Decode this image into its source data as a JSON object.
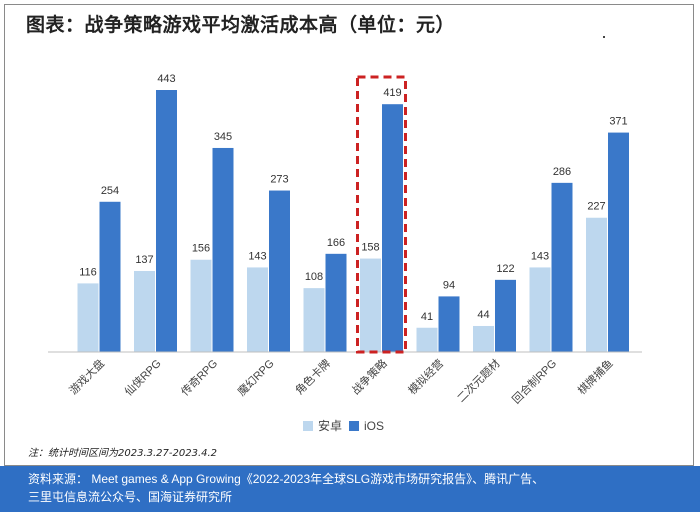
{
  "title": "图表：战争策略游戏平均激活成本高（单位：元）",
  "note": "注：统计时间区间为2023.3.27-2023.4.2",
  "source": {
    "line1": "资料来源：  Meet games & App Growing《2022-2023年全球SLG游戏市场研究报告》、腾讯广告、",
    "line2": "三里屯信息流公众号、国海证券研究所"
  },
  "colors": {
    "android": "#bdd7ee",
    "ios": "#3a78c9",
    "highlight": "#cc2222",
    "source_bg": "#2f6fc4"
  },
  "chart_data": {
    "type": "bar",
    "title": "图表：战争策略游戏平均激活成本高（单位：元）",
    "categories": [
      "游戏大盘",
      "仙侠RPG",
      "传奇RPG",
      "魔幻RPG",
      "角色卡牌",
      "战争策略",
      "模拟经营",
      "二次元题材",
      "回合制RPG",
      "棋牌捕鱼"
    ],
    "series": [
      {
        "name": "安卓",
        "values": [
          116,
          137,
          156,
          143,
          108,
          158,
          41,
          44,
          143,
          227
        ]
      },
      {
        "name": "iOS",
        "values": [
          254,
          443,
          345,
          273,
          166,
          419,
          94,
          122,
          286,
          371
        ]
      }
    ],
    "highlighted_category": "战争策略",
    "ylim": [
      0,
      460
    ],
    "grid": false,
    "legend_position": "bottom"
  }
}
